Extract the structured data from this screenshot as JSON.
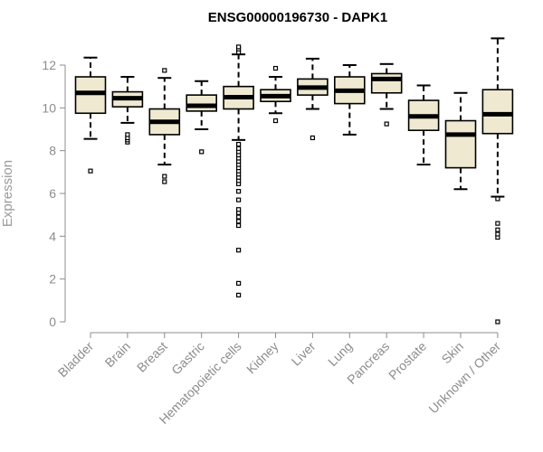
{
  "chart_data": {
    "type": "boxplot",
    "title": "ENSG00000196730 - DAPK1",
    "xlabel": "",
    "ylabel": "Expression",
    "ylim": [
      0,
      13.3
    ],
    "yticks": [
      0,
      2,
      4,
      6,
      8,
      10,
      12
    ],
    "grid": false,
    "colors": {
      "box_fill": "#efe9d1",
      "box_stroke": "#000000",
      "axis": "#8c8c8c"
    },
    "categories": [
      "Bladder",
      "Brain",
      "Breast",
      "Gastric",
      "Hematopoietic cells",
      "Kidney",
      "Liver",
      "Lung",
      "Pancreas",
      "Prostate",
      "Skin",
      "Unknown / Other"
    ],
    "boxes": [
      {
        "category": "Bladder",
        "whisker_low": 8.55,
        "q1": 9.75,
        "median": 10.7,
        "q3": 11.45,
        "whisker_high": 12.35,
        "outliers": [
          7.05
        ]
      },
      {
        "category": "Brain",
        "whisker_low": 9.3,
        "q1": 10.05,
        "median": 10.45,
        "q3": 10.75,
        "whisker_high": 11.45,
        "outliers": [
          8.4,
          8.5,
          8.6,
          8.75
        ]
      },
      {
        "category": "Breast",
        "whisker_low": 7.35,
        "q1": 8.75,
        "median": 9.35,
        "q3": 9.95,
        "whisker_high": 11.4,
        "outliers": [
          6.55,
          6.8,
          11.75
        ]
      },
      {
        "category": "Gastric",
        "whisker_low": 9.0,
        "q1": 9.85,
        "median": 10.1,
        "q3": 10.6,
        "whisker_high": 11.25,
        "outliers": [
          7.95
        ]
      },
      {
        "category": "Hematopoietic cells",
        "whisker_low": 8.5,
        "q1": 9.95,
        "median": 10.5,
        "q3": 11.0,
        "whisker_high": 12.5,
        "outliers": [
          1.25,
          1.8,
          3.35,
          4.5,
          4.7,
          4.9,
          5.1,
          5.25,
          5.7,
          6.1,
          6.45,
          6.6,
          6.75,
          6.9,
          7.05,
          7.2,
          7.35,
          7.5,
          7.65,
          7.8,
          7.95,
          8.1,
          8.3,
          12.6,
          12.75,
          12.85
        ]
      },
      {
        "category": "Kidney",
        "whisker_low": 9.75,
        "q1": 10.3,
        "median": 10.55,
        "q3": 10.85,
        "whisker_high": 11.45,
        "outliers": [
          9.4,
          11.85
        ]
      },
      {
        "category": "Liver",
        "whisker_low": 9.95,
        "q1": 10.6,
        "median": 10.95,
        "q3": 11.35,
        "whisker_high": 12.3,
        "outliers": [
          8.6
        ]
      },
      {
        "category": "Lung",
        "whisker_low": 8.75,
        "q1": 10.2,
        "median": 10.8,
        "q3": 11.45,
        "whisker_high": 12.0,
        "outliers": []
      },
      {
        "category": "Pancreas",
        "whisker_low": 9.95,
        "q1": 10.7,
        "median": 11.35,
        "q3": 11.6,
        "whisker_high": 12.05,
        "outliers": [
          9.25
        ]
      },
      {
        "category": "Prostate",
        "whisker_low": 7.35,
        "q1": 8.95,
        "median": 9.6,
        "q3": 10.35,
        "whisker_high": 11.05,
        "outliers": []
      },
      {
        "category": "Skin",
        "whisker_low": 6.2,
        "q1": 7.2,
        "median": 8.75,
        "q3": 9.4,
        "whisker_high": 10.7,
        "outliers": []
      },
      {
        "category": "Unknown / Other",
        "whisker_low": 5.85,
        "q1": 8.8,
        "median": 9.7,
        "q3": 10.85,
        "whisker_high": 13.25,
        "outliers": [
          0.0,
          3.95,
          4.1,
          4.3,
          4.6,
          5.75
        ]
      }
    ]
  }
}
